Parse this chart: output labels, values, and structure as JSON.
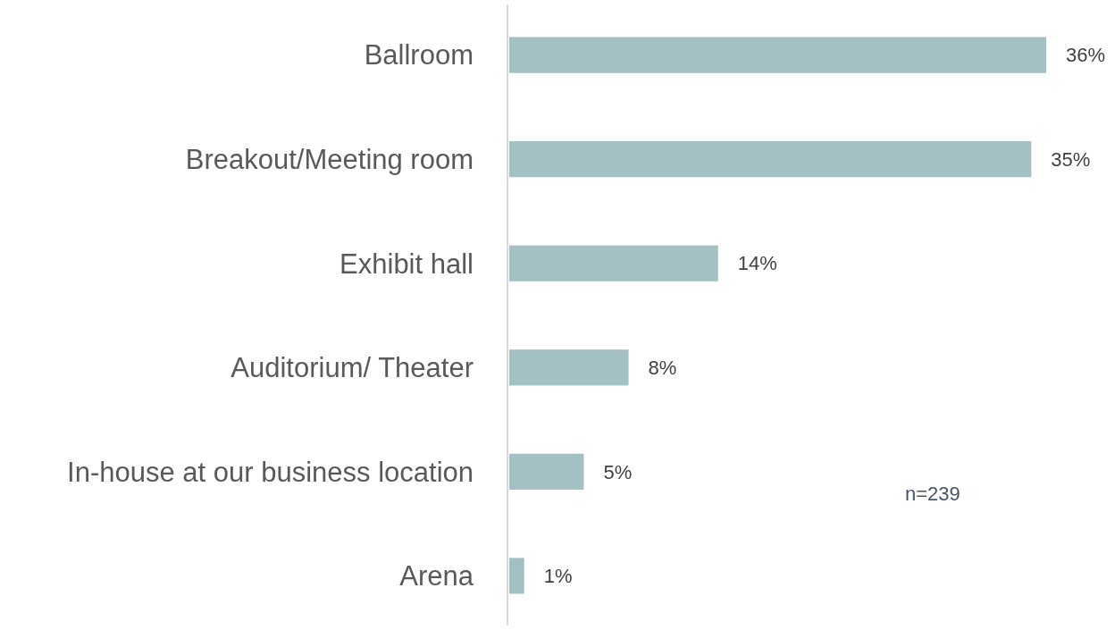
{
  "chart_data": {
    "type": "bar",
    "orientation": "horizontal",
    "categories": [
      "Ballroom",
      "Breakout/Meeting room",
      "Exhibit hall",
      "Auditorium/ Theater",
      "In-house at our business location",
      "Arena"
    ],
    "values": [
      36,
      35,
      14,
      8,
      5,
      1
    ],
    "color": "#a3c0c4",
    "value_labels": [
      "36%",
      "35%",
      "14%",
      "8%",
      "5%",
      "1%"
    ],
    "annotations": [
      "n=239"
    ]
  }
}
